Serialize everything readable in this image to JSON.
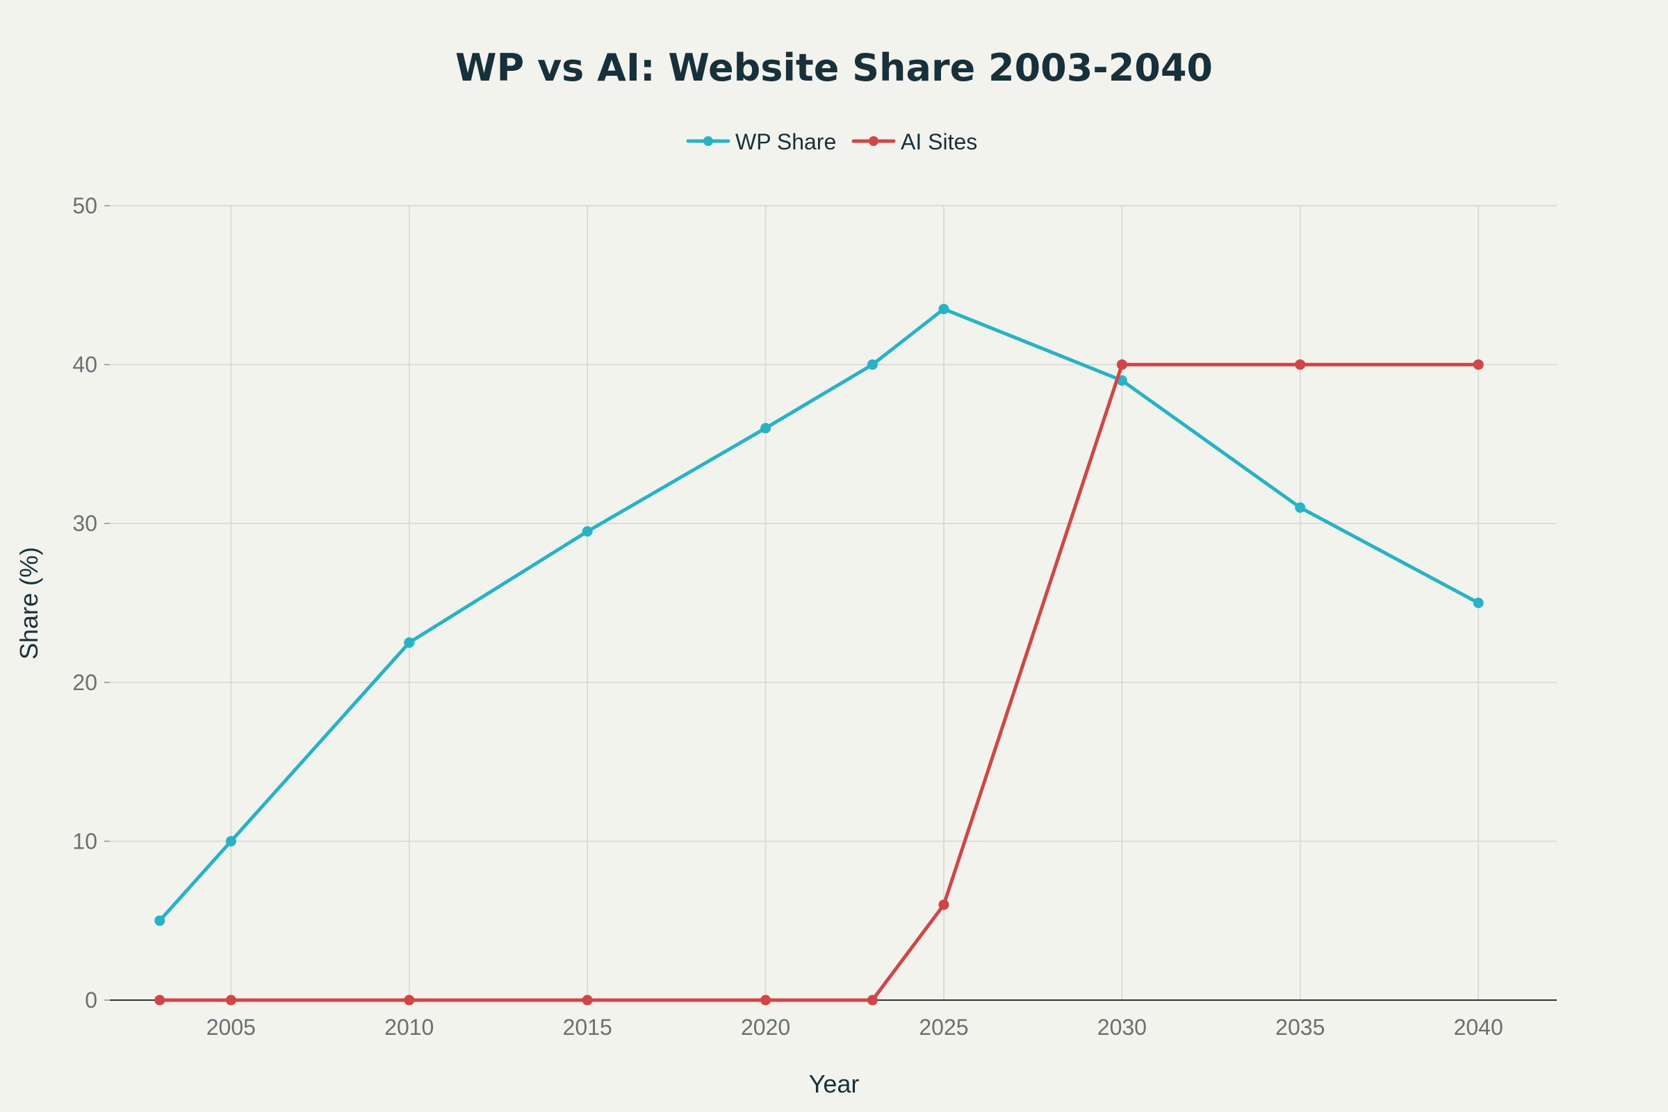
{
  "chart_data": {
    "type": "line",
    "title": "WP vs AI: Website Share 2003-2040",
    "xlabel": "Year",
    "ylabel": "Share (%)",
    "xlim": [
      2001.6,
      2042.2
    ],
    "ylim": [
      0,
      50
    ],
    "xticks": [
      2005,
      2010,
      2015,
      2020,
      2025,
      2030,
      2035,
      2040
    ],
    "yticks": [
      0,
      10,
      20,
      30,
      40,
      50
    ],
    "grid": true,
    "legend_position": "top-center",
    "x": [
      2003,
      2005,
      2010,
      2015,
      2020,
      2023,
      2025,
      2030,
      2035,
      2040
    ],
    "series": [
      {
        "name": "WP Share",
        "color": "#25b3c8",
        "values": [
          5,
          10,
          22.5,
          29.5,
          36,
          40,
          43.5,
          39,
          31,
          25
        ]
      },
      {
        "name": "AI Sites",
        "color": "#d34545",
        "values": [
          0,
          0,
          0,
          0,
          0,
          0,
          6,
          40,
          40,
          40
        ]
      }
    ]
  }
}
